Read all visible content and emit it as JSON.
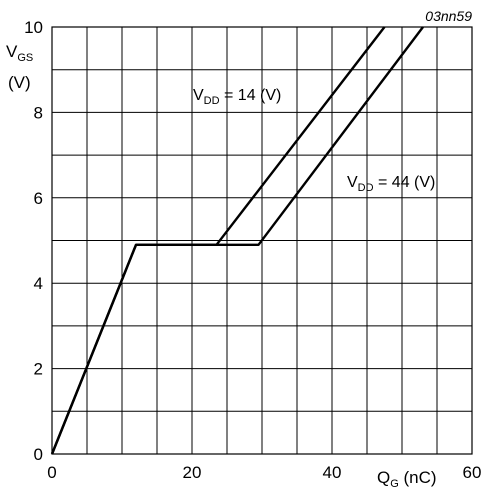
{
  "chart_data": {
    "type": "line",
    "annotation": "03nn59",
    "x_axis": {
      "label_main": "Q",
      "label_sub": "G",
      "label_suffix": " (nC)",
      "range": [
        0,
        60
      ],
      "ticks": [
        0,
        20,
        40,
        60
      ],
      "tick_labels": [
        "0",
        "20",
        "40",
        "60"
      ],
      "grid_step": 5
    },
    "y_axis": {
      "label_main": "V",
      "label_sub": "GS",
      "label_unit": "(V)",
      "range": [
        0,
        10
      ],
      "ticks": [
        0,
        2,
        4,
        6,
        8,
        10
      ],
      "tick_labels": [
        "0",
        "2",
        "4",
        "6",
        "8",
        "10"
      ],
      "grid_step": 1
    },
    "grid": true,
    "series": [
      {
        "name": "V_DD = 14 (V)",
        "label_main": "V",
        "label_sub": "DD",
        "label_suffix": " = 14 (V)",
        "points": [
          [
            0,
            0
          ],
          [
            12,
            4.9
          ],
          [
            23.5,
            4.9
          ],
          [
            47.5,
            10
          ]
        ]
      },
      {
        "name": "V_DD = 44 (V)",
        "label_main": "V",
        "label_sub": "DD",
        "label_suffix": " = 44 (V)",
        "points": [
          [
            0,
            0
          ],
          [
            12,
            4.9
          ],
          [
            29.5,
            4.9
          ],
          [
            53,
            10
          ]
        ]
      }
    ]
  }
}
